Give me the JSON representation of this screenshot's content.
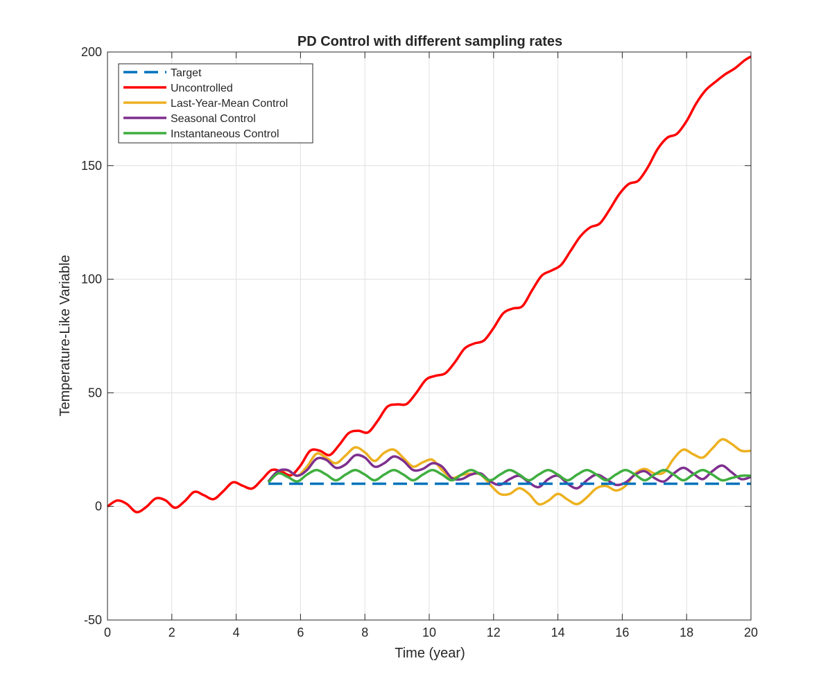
{
  "chart_data": {
    "type": "line",
    "title": "PD Control with different sampling rates",
    "xlabel": "Time (year)",
    "ylabel": "Temperature-Like Variable",
    "xlim": [
      0,
      20
    ],
    "ylim": [
      -50,
      200
    ],
    "xticks": [
      0,
      2,
      4,
      6,
      8,
      10,
      12,
      14,
      16,
      18,
      20
    ],
    "xtick_labels": [
      "0",
      "2",
      "4",
      "6",
      "8",
      "10",
      "12",
      "14",
      "16",
      "18",
      "20"
    ],
    "yticks": [
      -50,
      0,
      50,
      100,
      150,
      200
    ],
    "ytick_labels": [
      "-50",
      "0",
      "50",
      "100",
      "150",
      "200"
    ],
    "grid": true,
    "legend_position": "top-left",
    "series": [
      {
        "name": "Target",
        "color": "#0072BD",
        "style": "dashed",
        "x": [
          5,
          20
        ],
        "y": [
          10,
          10
        ]
      },
      {
        "name": "Uncontrolled",
        "color": "#FF0000",
        "style": "solid",
        "x": [
          0,
          0.3,
          0.6,
          0.9,
          1.2,
          1.5,
          1.8,
          2.1,
          2.4,
          2.7,
          3.0,
          3.3,
          3.6,
          3.9,
          4.2,
          4.5,
          4.8,
          5.1,
          5.4,
          5.7,
          6.0,
          6.3,
          6.6,
          6.9,
          7.2,
          7.5,
          7.8,
          8.1,
          8.4,
          8.7,
          9.0,
          9.3,
          9.6,
          9.9,
          10.2,
          10.5,
          10.8,
          11.1,
          11.4,
          11.7,
          12.0,
          12.3,
          12.6,
          12.9,
          13.2,
          13.5,
          13.8,
          14.1,
          14.4,
          14.7,
          15.0,
          15.3,
          15.6,
          15.9,
          16.2,
          16.5,
          16.8,
          17.1,
          17.4,
          17.7,
          18.0,
          18.3,
          18.6,
          18.9,
          19.2,
          19.5,
          19.8,
          20.0
        ],
        "y": [
          0,
          2.6,
          1.1,
          -2.5,
          -0.3,
          3.5,
          2.7,
          -0.6,
          2.3,
          6.4,
          4.9,
          3.2,
          6.7,
          10.6,
          9.1,
          7.9,
          11.8,
          16.0,
          15.4,
          13.7,
          18.0,
          24.5,
          24.5,
          22.6,
          27.0,
          32.3,
          33.3,
          32.6,
          37.7,
          43.9,
          44.9,
          45.1,
          50.0,
          55.8,
          57.5,
          58.6,
          63.5,
          69.5,
          71.7,
          73.0,
          78.5,
          85.0,
          87.1,
          88.2,
          95.2,
          101.6,
          103.8,
          106.3,
          112.6,
          118.9,
          122.8,
          124.5,
          130.5,
          137.3,
          141.9,
          143.4,
          149.4,
          157.3,
          162.3,
          164.0,
          169.6,
          177.4,
          183.3,
          186.9,
          190.2,
          192.8,
          196.3,
          198.0
        ]
      },
      {
        "name": "Last-Year-Mean Control",
        "color": "#EDB120",
        "style": "solid",
        "x": [
          5.0,
          5.3,
          5.6,
          5.9,
          6.2,
          6.5,
          6.8,
          7.1,
          7.4,
          7.7,
          8.0,
          8.3,
          8.6,
          8.9,
          9.2,
          9.5,
          9.8,
          10.1,
          10.4,
          10.7,
          11.0,
          11.3,
          11.6,
          11.9,
          12.2,
          12.5,
          12.8,
          13.1,
          13.4,
          13.7,
          14.0,
          14.3,
          14.6,
          14.9,
          15.2,
          15.5,
          15.8,
          16.1,
          16.4,
          16.7,
          17.0,
          17.3,
          17.6,
          17.9,
          18.2,
          18.5,
          18.8,
          19.1,
          19.4,
          19.7,
          20.0
        ],
        "y": [
          11.0,
          15.5,
          15.8,
          13.5,
          17.5,
          23.2,
          21.4,
          19.0,
          22.4,
          26.0,
          23.8,
          20.0,
          23.6,
          25.0,
          21.3,
          17.5,
          19.4,
          20.5,
          16.0,
          12.5,
          13.8,
          14.4,
          14.0,
          9.5,
          5.5,
          5.5,
          8.0,
          5.5,
          1.0,
          2.5,
          5.5,
          3.0,
          1.0,
          4.0,
          8.0,
          9.0,
          7.0,
          9.0,
          14.5,
          16.5,
          14.5,
          15.0,
          21.0,
          25.0,
          23.0,
          21.5,
          25.5,
          29.5,
          27.5,
          24.5,
          24.5
        ]
      },
      {
        "name": "Seasonal Control",
        "color": "#7E2F8E",
        "style": "solid",
        "x": [
          5.0,
          5.3,
          5.6,
          5.9,
          6.2,
          6.5,
          6.8,
          7.1,
          7.4,
          7.7,
          8.0,
          8.3,
          8.6,
          8.9,
          9.2,
          9.5,
          9.8,
          10.1,
          10.4,
          10.7,
          11.0,
          11.3,
          11.6,
          11.9,
          12.2,
          12.5,
          12.8,
          13.1,
          13.4,
          13.7,
          14.0,
          14.3,
          14.6,
          14.9,
          15.2,
          15.5,
          15.8,
          16.1,
          16.4,
          16.7,
          17.0,
          17.3,
          17.6,
          17.9,
          18.2,
          18.5,
          18.8,
          19.1,
          19.4,
          19.7,
          20.0
        ],
        "y": [
          11.0,
          15.5,
          16.0,
          13.5,
          16.0,
          21.0,
          20.5,
          17.0,
          18.5,
          22.5,
          21.5,
          17.5,
          19.0,
          22.0,
          20.0,
          16.0,
          16.5,
          19.0,
          17.5,
          12.5,
          12.0,
          14.0,
          14.5,
          11.0,
          9.5,
          12.0,
          13.5,
          10.5,
          8.5,
          12.0,
          13.5,
          10.0,
          8.0,
          11.5,
          14.0,
          12.0,
          9.5,
          10.5,
          14.0,
          15.5,
          12.5,
          11.0,
          14.5,
          17.0,
          14.5,
          12.0,
          15.5,
          18.0,
          15.0,
          12.0,
          13.0
        ]
      },
      {
        "name": "Instantaneous Control",
        "color": "#3FAE3F",
        "style": "solid",
        "x": [
          5.0,
          5.3,
          5.6,
          5.9,
          6.2,
          6.5,
          6.8,
          7.1,
          7.4,
          7.7,
          8.0,
          8.3,
          8.6,
          8.9,
          9.2,
          9.5,
          9.8,
          10.1,
          10.4,
          10.7,
          11.0,
          11.3,
          11.6,
          11.9,
          12.2,
          12.5,
          12.8,
          13.1,
          13.4,
          13.7,
          14.0,
          14.3,
          14.6,
          14.9,
          15.2,
          15.5,
          15.8,
          16.1,
          16.4,
          16.7,
          17.0,
          17.3,
          17.6,
          17.9,
          18.2,
          18.5,
          18.8,
          19.1,
          19.4,
          19.7,
          20.0
        ],
        "y": [
          10.5,
          14.5,
          13.0,
          11.0,
          14.0,
          16.0,
          14.0,
          11.5,
          14.0,
          16.0,
          14.0,
          11.5,
          14.0,
          16.0,
          14.0,
          11.5,
          14.0,
          16.0,
          14.0,
          11.5,
          14.0,
          16.0,
          14.0,
          11.5,
          14.0,
          16.0,
          14.0,
          11.5,
          14.0,
          16.0,
          14.0,
          11.5,
          14.0,
          16.0,
          14.0,
          11.5,
          14.0,
          16.0,
          14.0,
          11.5,
          14.0,
          16.0,
          14.0,
          11.5,
          14.0,
          16.0,
          14.0,
          11.5,
          12.5,
          13.5,
          13.5
        ]
      }
    ]
  }
}
